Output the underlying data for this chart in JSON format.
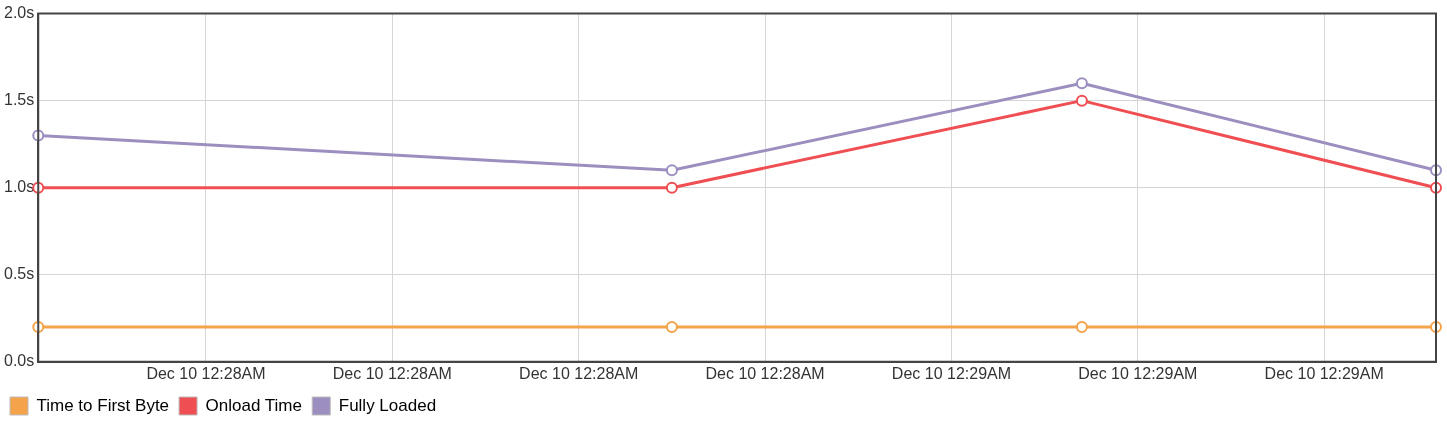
{
  "chart_data": {
    "type": "line",
    "categories": [
      null,
      null,
      null,
      null,
      null,
      null,
      null,
      null,
      null,
      "Dec 10 12:28AM",
      null,
      null,
      null,
      null,
      null,
      null,
      null,
      null,
      null,
      "Dec 10 12:28AM",
      null,
      null,
      null,
      null,
      null,
      null,
      null,
      null,
      null,
      "Dec 10 12:28AM",
      null,
      null,
      null,
      null,
      null,
      null,
      null,
      null,
      null,
      "Dec 10 12:28AM",
      null,
      null,
      null,
      null,
      null,
      null,
      null,
      null,
      null,
      "Dec 10 12:29AM",
      null,
      null,
      null,
      null,
      null,
      null,
      null,
      null,
      null,
      "Dec 10 12:29AM",
      null,
      null,
      null,
      null,
      null,
      null,
      null,
      null,
      null,
      "Dec 10 12:29AM",
      null,
      null,
      null,
      null,
      null,
      null
    ],
    "series": [
      {
        "name": "Time to First Byte",
        "color": "#f5a34a",
        "values": [
          0.2,
          null,
          null,
          null,
          null,
          null,
          null,
          null,
          null,
          null,
          null,
          null,
          null,
          null,
          null,
          null,
          null,
          null,
          null,
          null,
          null,
          null,
          null,
          null,
          null,
          null,
          null,
          null,
          null,
          null,
          null,
          null,
          null,
          null,
          0.2,
          null,
          null,
          null,
          null,
          null,
          null,
          null,
          null,
          null,
          null,
          null,
          null,
          null,
          null,
          null,
          null,
          null,
          null,
          null,
          null,
          null,
          0.2,
          null,
          null,
          null,
          null,
          null,
          null,
          null,
          null,
          null,
          null,
          null,
          null,
          null,
          null,
          null,
          null,
          null,
          null,
          0.2
        ]
      },
      {
        "name": "Onload Time",
        "color": "#ef4f53",
        "values": [
          1.0,
          null,
          null,
          null,
          null,
          null,
          null,
          null,
          null,
          null,
          null,
          null,
          null,
          null,
          null,
          null,
          null,
          null,
          null,
          null,
          null,
          null,
          null,
          null,
          null,
          null,
          null,
          null,
          null,
          null,
          null,
          null,
          null,
          null,
          1.0,
          null,
          null,
          null,
          null,
          null,
          null,
          null,
          null,
          null,
          null,
          null,
          null,
          null,
          null,
          null,
          null,
          null,
          null,
          null,
          null,
          null,
          1.5,
          null,
          null,
          null,
          null,
          null,
          null,
          null,
          null,
          null,
          null,
          null,
          null,
          null,
          null,
          null,
          null,
          null,
          null,
          1.0
        ]
      },
      {
        "name": "Fully Loaded",
        "color": "#9c8fc0",
        "values": [
          1.3,
          null,
          null,
          null,
          null,
          null,
          null,
          null,
          null,
          null,
          null,
          null,
          null,
          null,
          null,
          null,
          null,
          null,
          null,
          null,
          null,
          null,
          null,
          null,
          null,
          null,
          null,
          null,
          null,
          null,
          null,
          null,
          null,
          null,
          1.1,
          null,
          null,
          null,
          null,
          null,
          null,
          null,
          null,
          null,
          null,
          null,
          null,
          null,
          null,
          null,
          null,
          null,
          null,
          null,
          null,
          null,
          1.6,
          null,
          null,
          null,
          null,
          null,
          null,
          null,
          null,
          null,
          null,
          null,
          null,
          null,
          null,
          null,
          null,
          null,
          null,
          1.1
        ]
      }
    ],
    "ylim": [
      0,
      2
    ],
    "yticks": [
      {
        "value": 0,
        "label": "0.0s"
      },
      {
        "value": 0.5,
        "label": "0.5s"
      },
      {
        "value": 1,
        "label": "1.0s"
      },
      {
        "value": 1.5,
        "label": "1.5s"
      },
      {
        "value": 2,
        "label": "2.0s"
      }
    ],
    "grid": true,
    "legend": "bottom left",
    "marker": "circle",
    "line_style": "solid"
  }
}
